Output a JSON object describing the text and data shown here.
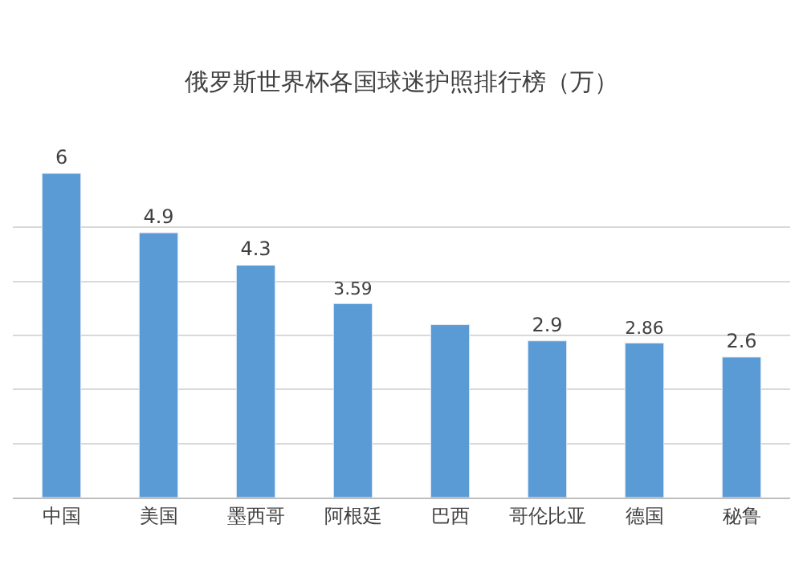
{
  "chart_data": {
    "type": "bar",
    "title": "俄罗斯世界杯各国球迷护照排行榜（万）",
    "categories": [
      "中国",
      "美国",
      "墨西哥",
      "阿根廷",
      "巴西",
      "哥伦比亚",
      "德国",
      "秘鲁"
    ],
    "values": [
      6,
      4.9,
      4.3,
      3.59,
      3.2,
      2.9,
      2.86,
      2.6
    ],
    "value_labels": [
      "6",
      "4.9",
      "4.3",
      "3.59",
      null,
      "2.9",
      "2.86",
      "2.6"
    ],
    "color": "#5b9bd5",
    "ylim": [
      0,
      6
    ],
    "tick_labels": "x",
    "grid": "y"
  }
}
